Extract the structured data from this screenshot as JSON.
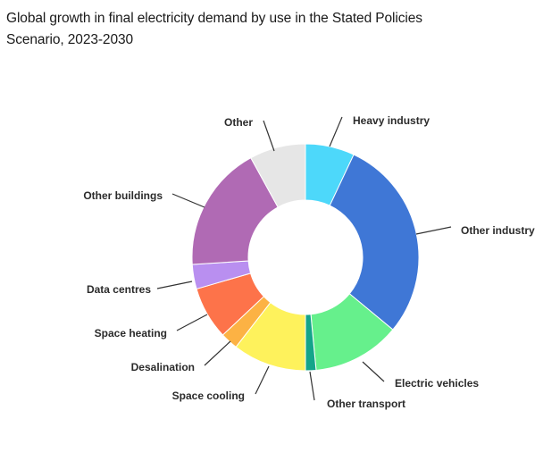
{
  "title_line1": "Global growth in final electricity demand by use in the Stated Policies",
  "title_line2": "Scenario, 2023-2030",
  "chart_data": {
    "type": "pie",
    "donut": true,
    "legend": "none",
    "categories": [
      "Heavy industry",
      "Other industry",
      "Electric vehicles",
      "Other transport",
      "Space cooling",
      "Desalination",
      "Space heating",
      "Data centres",
      "Other buildings",
      "Other"
    ],
    "values": [
      7,
      29,
      12.5,
      1.5,
      10.5,
      2.5,
      7.5,
      3.5,
      18,
      8
    ],
    "colors": [
      "#4dd8fa",
      "#3f77d6",
      "#66f08c",
      "#14a48a",
      "#fef25c",
      "#fcb244",
      "#fd734a",
      "#b98ff0",
      "#b06ab4",
      "#e6e6e6"
    ]
  }
}
